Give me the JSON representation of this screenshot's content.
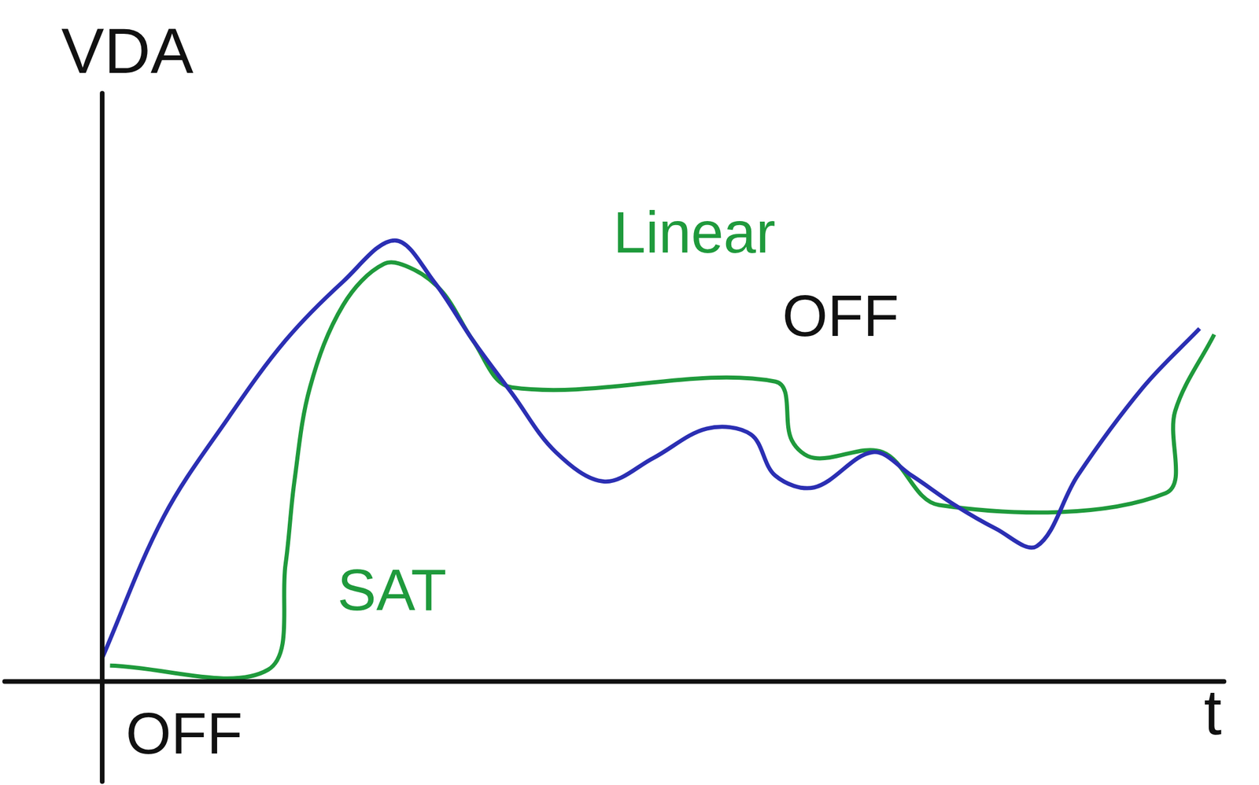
{
  "chart_data": {
    "type": "line",
    "x_label": "t",
    "y_label": "VDA",
    "xlim": [
      -10,
      115
    ],
    "ylim": [
      -17,
      100
    ],
    "tick_labels": false,
    "grid": false,
    "series": [
      {
        "color": "#2b2fb3",
        "x": [
          0,
          6.3,
          13,
          18.8,
          24.7,
          30,
          34,
          38,
          42,
          46.5,
          51.5,
          56.5,
          62,
          66.5,
          69,
          73,
          79,
          83,
          87.4,
          91.6,
          95.8,
          100,
          106.7,
          112.5
        ],
        "values": [
          4,
          28,
          45,
          58,
          68,
          75,
          68,
          58,
          49,
          39,
          34,
          38,
          43,
          42,
          35,
          33,
          39,
          35,
          30,
          26,
          23,
          35,
          50,
          60
        ]
      },
      {
        "color": "#1f9a3c",
        "x": [
          0.8,
          17,
          18.8,
          19.7,
          21.3,
          24.7,
          28.9,
          32,
          35,
          38,
          42,
          69,
          70.7,
          73,
          80,
          85.8,
          109,
          110,
          114
        ],
        "values": [
          2.7,
          2,
          20,
          34,
          50,
          64,
          71,
          70,
          66,
          58,
          50,
          51,
          41,
          38,
          39,
          30,
          32,
          46,
          59
        ]
      }
    ],
    "annotations": [
      {
        "text": "Linear",
        "x": 60.7,
        "y": 75.7,
        "color": "#1f9a3c"
      },
      {
        "text": "OFF",
        "x": 75.7,
        "y": 61.5,
        "color": "#111111"
      },
      {
        "text": "SAT",
        "x": 29.7,
        "y": 14.9,
        "color": "#1f9a3c"
      },
      {
        "text": "OFF",
        "x": 8.4,
        "y": -9.5,
        "color": "#111111"
      }
    ]
  }
}
